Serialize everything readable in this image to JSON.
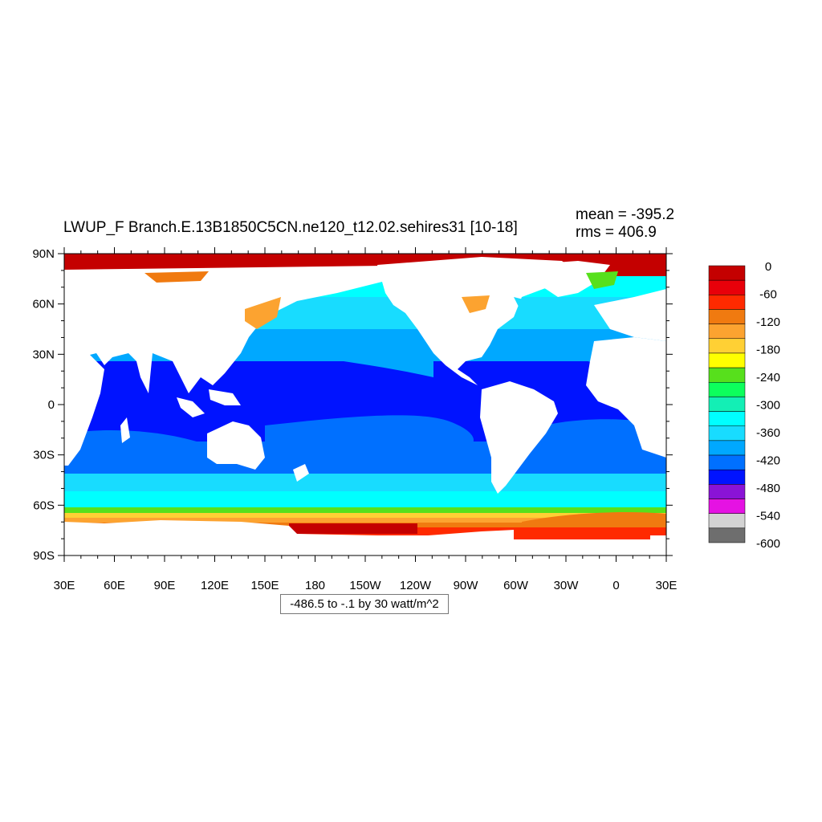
{
  "title": "LWUP_F Branch.E.13B1850C5CN.ne120_t12.02.sehires31 [10-18]",
  "stats": {
    "mean": "mean = -395.2",
    "rms": "rms = 406.9"
  },
  "contour_info": "-486.5 to -.1 by 30 watt/m^2",
  "axes": {
    "lat_labels": [
      "90N",
      "60N",
      "30N",
      "0",
      "30S",
      "60S",
      "90S"
    ],
    "lon_labels": [
      "30E",
      "60E",
      "90E",
      "120E",
      "150E",
      "180",
      "150W",
      "120W",
      "90W",
      "60W",
      "30W",
      "0",
      "30E"
    ]
  },
  "colorbar": {
    "labels": [
      "0",
      "-60",
      "-120",
      "-180",
      "-240",
      "-300",
      "-360",
      "-420",
      "-480",
      "-540",
      "-600"
    ],
    "colors": [
      "#c40000",
      "#e8000a",
      "#ff2a00",
      "#f07a10",
      "#fca330",
      "#ffd034",
      "#ffff00",
      "#57e01c",
      "#0dff5c",
      "#13efb5",
      "#00ffff",
      "#18dcff",
      "#00a8ff",
      "#0070ff",
      "#0013ff",
      "#8a13d6",
      "#e512e3",
      "#d3d3d3",
      "#6e6e6e"
    ]
  }
}
